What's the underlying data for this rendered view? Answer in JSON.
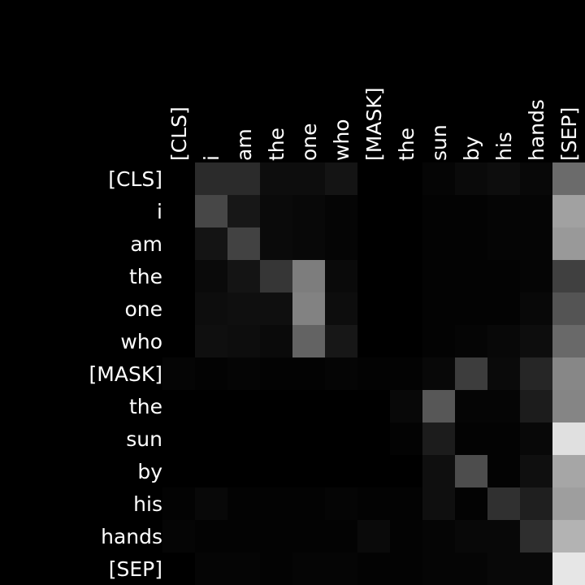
{
  "chart_data": {
    "type": "heatmap",
    "colormap": "grayscale",
    "value_range": [
      0,
      1
    ],
    "x_tokens": [
      "[CLS]",
      "i",
      "am",
      "the",
      "one",
      "who",
      "[MASK]",
      "the",
      "sun",
      "by",
      "his",
      "hands",
      "[SEP]"
    ],
    "y_tokens": [
      "[CLS]",
      "i",
      "am",
      "the",
      "one",
      "who",
      "[MASK]",
      "the",
      "sun",
      "by",
      "his",
      "hands",
      "[SEP]"
    ],
    "values": [
      [
        0.0,
        0.17,
        0.17,
        0.05,
        0.05,
        0.08,
        0.0,
        0.0,
        0.02,
        0.04,
        0.05,
        0.03,
        0.42
      ],
      [
        0.0,
        0.28,
        0.09,
        0.04,
        0.03,
        0.02,
        0.0,
        0.0,
        0.01,
        0.01,
        0.02,
        0.02,
        0.63
      ],
      [
        0.0,
        0.08,
        0.26,
        0.04,
        0.03,
        0.02,
        0.0,
        0.0,
        0.01,
        0.01,
        0.02,
        0.02,
        0.6
      ],
      [
        0.0,
        0.04,
        0.08,
        0.21,
        0.49,
        0.04,
        0.0,
        0.0,
        0.01,
        0.01,
        0.01,
        0.02,
        0.25
      ],
      [
        0.0,
        0.05,
        0.06,
        0.06,
        0.51,
        0.05,
        0.0,
        0.0,
        0.01,
        0.01,
        0.01,
        0.03,
        0.33
      ],
      [
        0.0,
        0.06,
        0.05,
        0.04,
        0.39,
        0.09,
        0.0,
        0.0,
        0.01,
        0.02,
        0.03,
        0.05,
        0.41
      ],
      [
        0.02,
        0.01,
        0.02,
        0.01,
        0.01,
        0.02,
        0.01,
        0.01,
        0.03,
        0.24,
        0.04,
        0.15,
        0.53
      ],
      [
        0.0,
        0.0,
        0.0,
        0.0,
        0.0,
        0.0,
        0.0,
        0.03,
        0.34,
        0.02,
        0.02,
        0.11,
        0.52
      ],
      [
        0.0,
        0.0,
        0.0,
        0.0,
        0.0,
        0.0,
        0.0,
        0.01,
        0.11,
        0.01,
        0.01,
        0.03,
        0.88
      ],
      [
        0.0,
        0.0,
        0.0,
        0.0,
        0.0,
        0.0,
        0.0,
        0.0,
        0.06,
        0.3,
        0.01,
        0.06,
        0.65
      ],
      [
        0.01,
        0.03,
        0.01,
        0.01,
        0.01,
        0.02,
        0.01,
        0.01,
        0.06,
        0.01,
        0.19,
        0.12,
        0.62
      ],
      [
        0.02,
        0.01,
        0.01,
        0.01,
        0.01,
        0.01,
        0.04,
        0.01,
        0.02,
        0.03,
        0.03,
        0.18,
        0.7
      ],
      [
        0.0,
        0.02,
        0.02,
        0.01,
        0.02,
        0.02,
        0.01,
        0.01,
        0.02,
        0.02,
        0.03,
        0.03,
        0.9
      ]
    ],
    "title": "",
    "xlabel": "",
    "ylabel": "",
    "grid": false,
    "legend": "none"
  }
}
